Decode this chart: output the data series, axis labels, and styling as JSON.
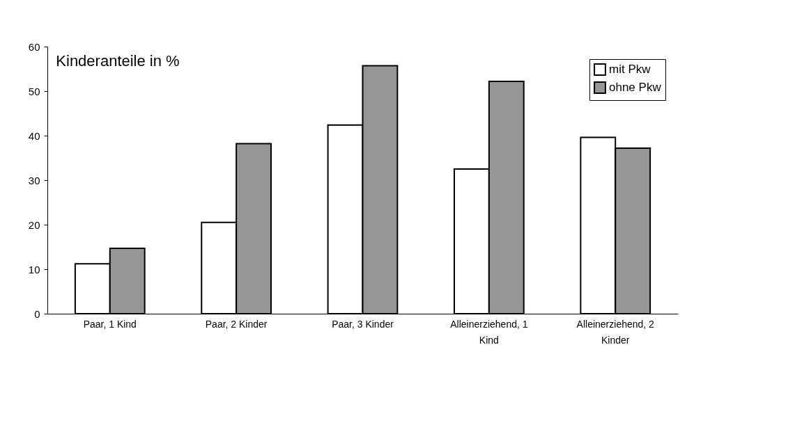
{
  "chart_data": {
    "type": "bar",
    "title": "Kinderanteile in %",
    "categories": [
      "Paar, 1 Kind",
      "Paar, 2 Kinder",
      "Paar, 3 Kinder",
      "Alleinerziehend, 1 Kind",
      "Alleinerziehend, 2 Kinder"
    ],
    "series": [
      {
        "name": "mit Pkw",
        "color": "#ffffff",
        "values": [
          11.2,
          20.5,
          42.4,
          32.5,
          39.6
        ]
      },
      {
        "name": "ohne Pkw",
        "color": "#969696",
        "values": [
          14.7,
          38.2,
          55.7,
          52.2,
          37.2
        ]
      }
    ],
    "ylim": [
      0,
      60
    ],
    "yticks": [
      0,
      10,
      20,
      30,
      40,
      50,
      60
    ],
    "grid": false,
    "legend": "top right"
  }
}
